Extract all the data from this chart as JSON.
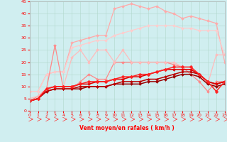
{
  "xlabel": "Vent moyen/en rafales ( km/h )",
  "xlim": [
    0,
    23
  ],
  "ylim": [
    0,
    45
  ],
  "yticks": [
    0,
    5,
    10,
    15,
    20,
    25,
    30,
    35,
    40,
    45
  ],
  "xticks": [
    0,
    1,
    2,
    3,
    4,
    5,
    6,
    7,
    8,
    9,
    10,
    11,
    12,
    13,
    14,
    15,
    16,
    17,
    18,
    19,
    20,
    21,
    22,
    23
  ],
  "background_color": "#d0eef0",
  "grid_color": "#b0d8cc",
  "lines": [
    {
      "x": [
        0,
        1,
        2,
        3,
        4,
        5,
        6,
        7,
        8,
        9,
        10,
        11,
        12,
        13,
        14,
        15,
        16,
        17,
        18,
        19,
        20,
        21,
        22,
        23
      ],
      "y": [
        8,
        8,
        15,
        16,
        16,
        28,
        29,
        30,
        31,
        31,
        42,
        43,
        44,
        43,
        42,
        43,
        41,
        40,
        38,
        39,
        38,
        37,
        36,
        20
      ],
      "color": "#ffaaaa",
      "lw": 0.9,
      "marker": "D",
      "ms": 2.0
    },
    {
      "x": [
        0,
        1,
        2,
        3,
        4,
        5,
        6,
        7,
        8,
        9,
        10,
        11,
        12,
        13,
        14,
        15,
        16,
        17,
        18,
        19,
        20,
        21,
        22,
        23
      ],
      "y": [
        8,
        8,
        15,
        16,
        16,
        26,
        27,
        28,
        29,
        29,
        31,
        32,
        33,
        34,
        35,
        35,
        35,
        35,
        34,
        34,
        33,
        33,
        33,
        23
      ],
      "color": "#ffcccc",
      "lw": 0.9,
      "marker": "D",
      "ms": 2.0
    },
    {
      "x": [
        0,
        1,
        2,
        3,
        4,
        5,
        6,
        7,
        8,
        9,
        10,
        11,
        12,
        13,
        14,
        15,
        16,
        17,
        18,
        19,
        20,
        21,
        22,
        23
      ],
      "y": [
        4,
        6,
        9,
        27,
        9,
        9,
        12,
        15,
        13,
        13,
        20,
        20,
        20,
        20,
        20,
        20,
        20,
        19,
        18,
        15,
        12,
        8,
        12,
        12
      ],
      "color": "#ff8888",
      "lw": 0.9,
      "marker": "D",
      "ms": 2.0
    },
    {
      "x": [
        0,
        1,
        2,
        3,
        4,
        5,
        6,
        7,
        8,
        9,
        10,
        11,
        12,
        13,
        14,
        15,
        16,
        17,
        18,
        19,
        20,
        21,
        22,
        23
      ],
      "y": [
        5,
        6,
        9,
        10,
        10,
        22,
        25,
        20,
        25,
        25,
        20,
        25,
        20,
        20,
        20,
        20,
        20,
        20,
        18,
        18,
        15,
        11,
        23,
        23
      ],
      "color": "#ffbbbb",
      "lw": 0.9,
      "marker": "D",
      "ms": 2.0
    },
    {
      "x": [
        0,
        1,
        2,
        3,
        4,
        5,
        6,
        7,
        8,
        9,
        10,
        11,
        12,
        13,
        14,
        15,
        16,
        17,
        18,
        19,
        20,
        21,
        22,
        23
      ],
      "y": [
        4,
        5,
        8,
        9,
        9,
        9,
        9,
        10,
        10,
        10,
        11,
        11,
        11,
        11,
        12,
        12,
        13,
        14,
        15,
        15,
        14,
        11,
        10,
        11
      ],
      "color": "#990000",
      "lw": 1.1,
      "marker": "D",
      "ms": 2.0
    },
    {
      "x": [
        0,
        1,
        2,
        3,
        4,
        5,
        6,
        7,
        8,
        9,
        10,
        11,
        12,
        13,
        14,
        15,
        16,
        17,
        18,
        19,
        20,
        21,
        22,
        23
      ],
      "y": [
        4,
        5,
        8,
        9,
        9,
        9,
        10,
        10,
        10,
        10,
        11,
        12,
        12,
        12,
        13,
        13,
        14,
        15,
        16,
        16,
        15,
        12,
        11,
        12
      ],
      "color": "#bb0000",
      "lw": 1.1,
      "marker": "D",
      "ms": 2.0
    },
    {
      "x": [
        0,
        1,
        2,
        3,
        4,
        5,
        6,
        7,
        8,
        9,
        10,
        11,
        12,
        13,
        14,
        15,
        16,
        17,
        18,
        19,
        20,
        21,
        22,
        23
      ],
      "y": [
        4,
        5,
        9,
        10,
        10,
        10,
        11,
        11,
        12,
        12,
        13,
        13,
        14,
        14,
        15,
        16,
        17,
        17,
        17,
        17,
        15,
        12,
        11,
        12
      ],
      "color": "#dd0000",
      "lw": 1.1,
      "marker": "D",
      "ms": 2.0
    },
    {
      "x": [
        0,
        1,
        2,
        3,
        4,
        5,
        6,
        7,
        8,
        9,
        10,
        11,
        12,
        13,
        14,
        15,
        16,
        17,
        18,
        19,
        20,
        21,
        22,
        23
      ],
      "y": [
        4,
        5,
        9,
        10,
        10,
        10,
        11,
        12,
        12,
        12,
        13,
        14,
        14,
        15,
        15,
        16,
        17,
        18,
        18,
        18,
        15,
        12,
        8,
        12
      ],
      "color": "#ff2222",
      "lw": 1.1,
      "marker": "D",
      "ms": 2.5
    }
  ],
  "arrow_color": "#ff3333",
  "arrow_fontsize": 5
}
